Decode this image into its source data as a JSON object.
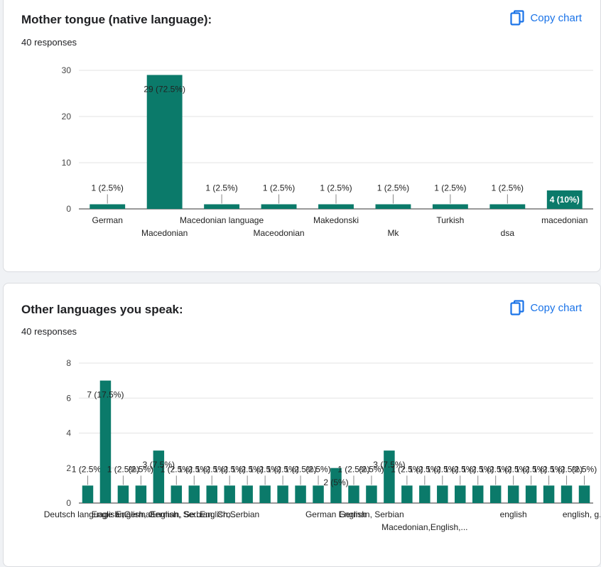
{
  "colors": {
    "bar": "#0b7a6a",
    "grid": "#e3e3e3",
    "axis": "#333333",
    "link": "#1a73e8"
  },
  "copy_label": "Copy chart",
  "icons": {
    "copy": "copy-icon"
  },
  "cards": [
    {
      "title": "Mother tongue (native language):",
      "responses": "40 responses"
    },
    {
      "title": "Other languages you speak:",
      "responses": "40 responses"
    }
  ],
  "chart_data": [
    {
      "type": "bar",
      "title": "Mother tongue (native language):",
      "ylim": [
        0,
        30
      ],
      "yticks": [
        0,
        10,
        20,
        30
      ],
      "grid": true,
      "categories": [
        "German",
        "Macedonian",
        "Macedonian language",
        "Maceodonian",
        "Makedonski",
        "Mk",
        "Turkish",
        "dsa",
        "macedonian"
      ],
      "values": [
        1,
        29,
        1,
        1,
        1,
        1,
        1,
        1,
        4
      ],
      "data_labels": [
        "1 (2.5%)",
        "29 (72.5%)",
        "1 (2.5%)",
        "1 (2.5%)",
        "1 (2.5%)",
        "1 (2.5%)",
        "1 (2.5%)",
        "1 (2.5%)",
        "4 (10%)"
      ]
    },
    {
      "type": "bar",
      "title": "Other languages you speak:",
      "ylim": [
        0,
        8
      ],
      "yticks": [
        0,
        2,
        4,
        6,
        8
      ],
      "grid": true,
      "categories": [
        "Deutsch language an...",
        "",
        "English ,German",
        "",
        "English, German, Se...",
        "",
        "English, Serbian, Cro...",
        "",
        "English,Serbian",
        "",
        "",
        "",
        "",
        "",
        "German English",
        "",
        "German, Serbian",
        "",
        "",
        "Macedonian,English,...",
        "",
        "",
        "",
        "",
        "english",
        "",
        "",
        "",
        "english, g..."
      ],
      "values": [
        1,
        7,
        1,
        1,
        3,
        1,
        1,
        1,
        1,
        1,
        1,
        1,
        1,
        1,
        2,
        1,
        1,
        3,
        1,
        1,
        1,
        1,
        1,
        1,
        1,
        1,
        1,
        1,
        1
      ],
      "data_labels": [
        "1 (2.5%)",
        "7 (17.5%)",
        "1 (2.5%)",
        "(2.5%)",
        "3 (7.5%)",
        "1 (2.5%)",
        "1 (2.5%)",
        "1 (2.5%)",
        "1 (2.5%)",
        "1 (2.5%)",
        "1 (2.5%)",
        "1 (2.5%)",
        "1 (2.5%)",
        "(2.5%)",
        "2 (5%)",
        "1 (2.5%)",
        "(2.5%)",
        "3 (7.5%)",
        "1 (2.5%)",
        "1 (2.5%)",
        "1 (2.5%)",
        "1 (2.5%)",
        "1 (2.5%)",
        "1 (2.5%)",
        "1 (2.5%)",
        "1 (2.5%)",
        "1 (2.5%)",
        "1 (2.5%)",
        "(2.5%)"
      ]
    }
  ]
}
